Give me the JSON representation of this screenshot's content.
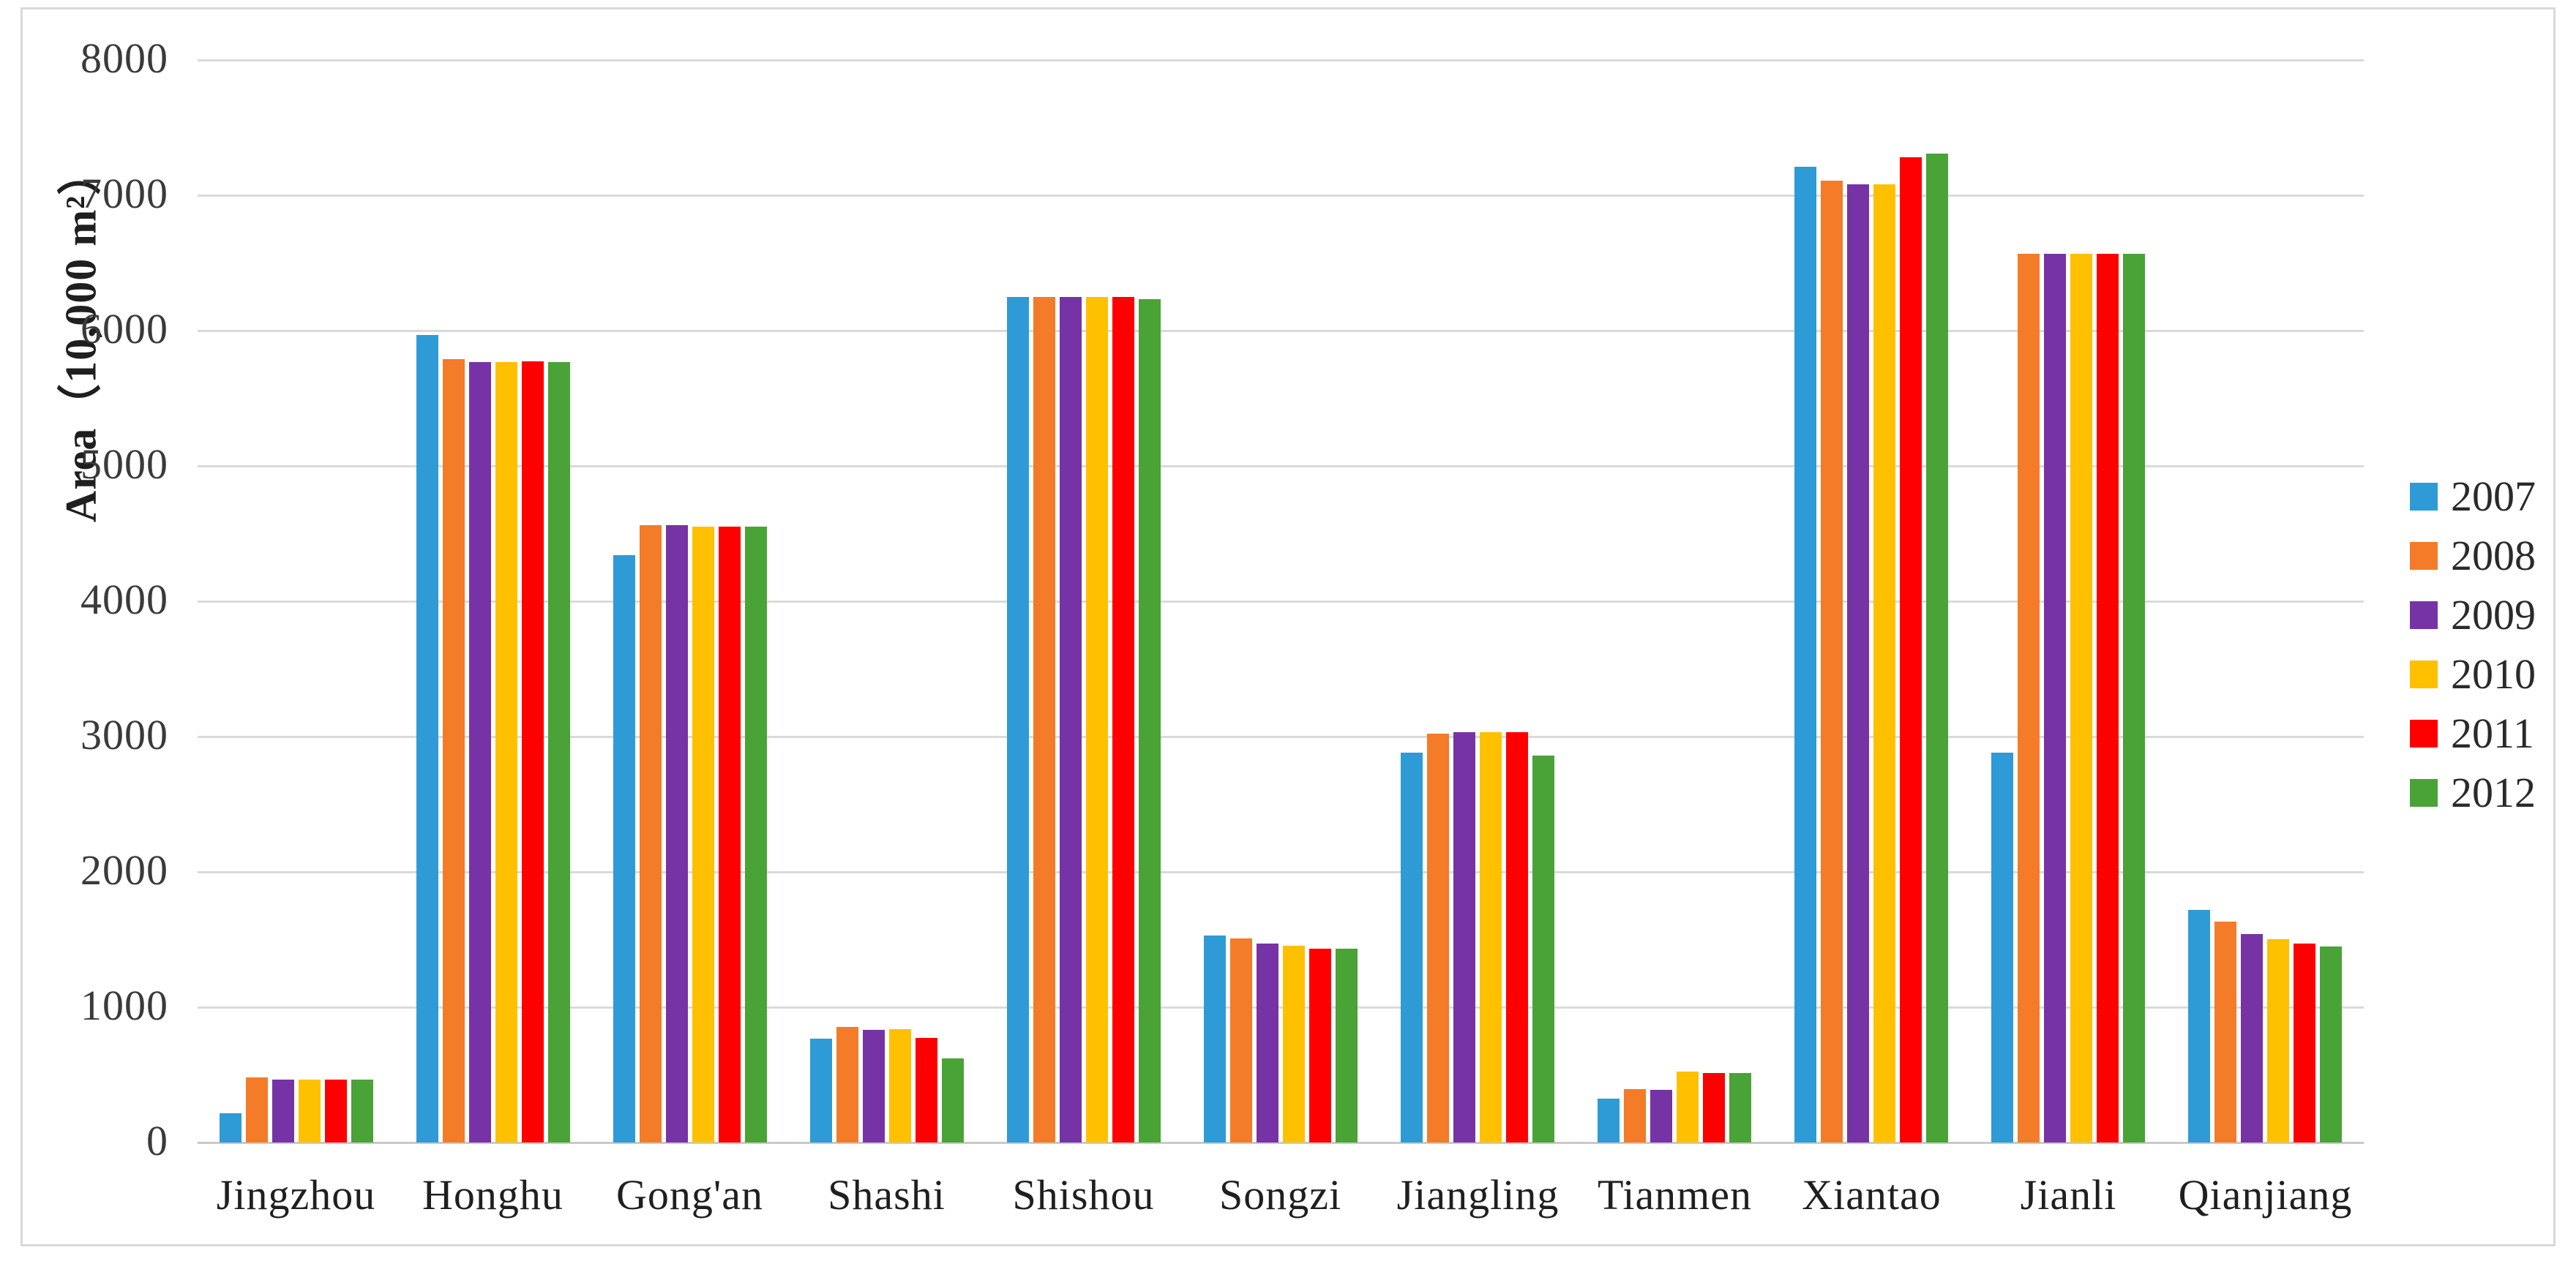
{
  "figure": {
    "background": "#ffffff",
    "frame_border_color": "#d9d9d9",
    "gridline_color": "#dadada"
  },
  "chart_data": {
    "type": "bar",
    "title": "",
    "xlabel": "",
    "ylabel": "Area（10,000 m²）",
    "ylim": [
      0,
      8000
    ],
    "ytick_step": 1000,
    "yticks": [
      0,
      1000,
      2000,
      3000,
      4000,
      5000,
      6000,
      7000,
      8000
    ],
    "grid": true,
    "legend_position": "right",
    "legend_entries": [
      "2007",
      "2008",
      "2009",
      "2010",
      "2011",
      "2012"
    ],
    "categories": [
      "Jingzhou",
      "Honghu",
      "Gong'an",
      "Shashi",
      "Shishou",
      "Songzi",
      "Jiangling",
      "Tianmen",
      "Xiantao",
      "Jianli",
      "Qianjiang"
    ],
    "series": [
      {
        "name": "2007",
        "color": "#2E9BD6",
        "values": [
          215,
          5970,
          4340,
          770,
          6250,
          1530,
          2880,
          325,
          7210,
          2880,
          1720
        ]
      },
      {
        "name": "2008",
        "color": "#F47B28",
        "values": [
          480,
          5790,
          4560,
          855,
          6250,
          1510,
          3020,
          395,
          7110,
          6570,
          1630
        ]
      },
      {
        "name": "2009",
        "color": "#7633A6",
        "values": [
          465,
          5770,
          4560,
          835,
          6250,
          1470,
          3030,
          390,
          7080,
          6570,
          1540
        ]
      },
      {
        "name": "2010",
        "color": "#FFC000",
        "values": [
          465,
          5770,
          4550,
          840,
          6250,
          1455,
          3030,
          525,
          7080,
          6570,
          1500
        ]
      },
      {
        "name": "2011",
        "color": "#FF0000",
        "values": [
          465,
          5775,
          4550,
          775,
          6250,
          1435,
          3030,
          515,
          7280,
          6570,
          1470
        ]
      },
      {
        "name": "2012",
        "color": "#4AA336",
        "values": [
          465,
          5770,
          4550,
          620,
          6230,
          1430,
          2860,
          515,
          7310,
          6570,
          1450
        ]
      }
    ]
  }
}
